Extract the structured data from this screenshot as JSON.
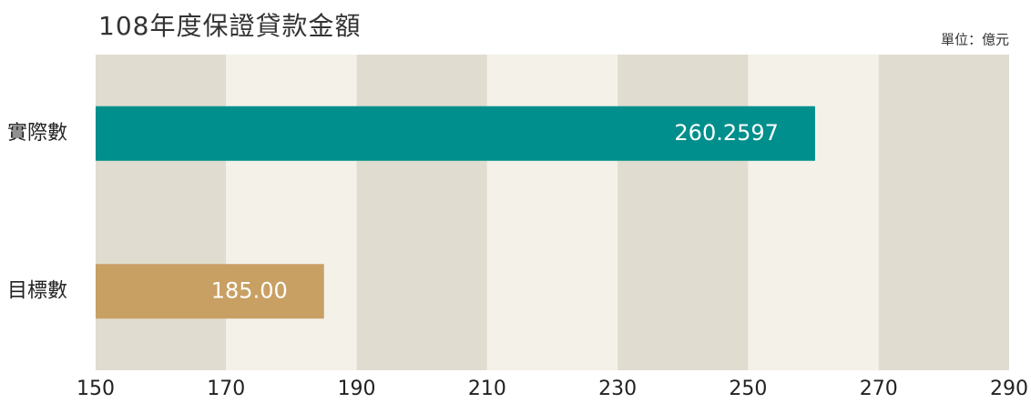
{
  "chart_data": {
    "type": "hbar",
    "title": "108年度保證貸款金額",
    "unit": "單位：億元",
    "categories": [
      "實際數",
      "目標數"
    ],
    "values": [
      260.2597,
      185
    ],
    "value_labels": [
      "260.2597",
      "185.00"
    ],
    "colors": [
      "#008f8c",
      "#c8a064"
    ],
    "xlim": [
      150,
      290
    ],
    "xticks": [
      150,
      170,
      190,
      210,
      230,
      250,
      270,
      290
    ],
    "band_colors": [
      "#e0dccf",
      "#f4f1e9"
    ]
  }
}
